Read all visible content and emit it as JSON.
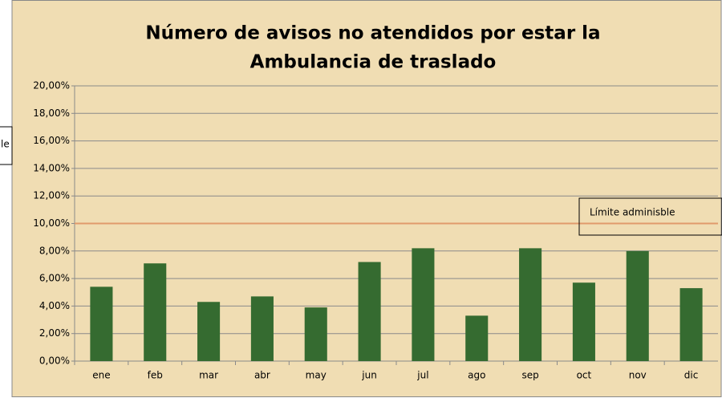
{
  "chart_data": {
    "type": "bar",
    "title": [
      "Número de avisos no atendidos por estar la",
      "Ambulancia de traslado"
    ],
    "categories": [
      "ene",
      "feb",
      "mar",
      "abr",
      "may",
      "jun",
      "jul",
      "ago",
      "sep",
      "oct",
      "nov",
      "dic"
    ],
    "values": [
      5.4,
      7.1,
      4.3,
      4.7,
      3.9,
      7.2,
      8.2,
      3.3,
      8.2,
      5.7,
      8.0,
      5.3
    ],
    "color": "#356b30",
    "ylim": [
      0,
      20
    ],
    "yticks": [
      {
        "value": 0,
        "label": "0,00%"
      },
      {
        "value": 2,
        "label": "2,00%"
      },
      {
        "value": 4,
        "label": "4,00%"
      },
      {
        "value": 6,
        "label": "6,00%"
      },
      {
        "value": 8,
        "label": "8,00%"
      },
      {
        "value": 10,
        "label": "10,00%"
      },
      {
        "value": 12,
        "label": "12,00%"
      },
      {
        "value": 14,
        "label": "14,00%"
      },
      {
        "value": 16,
        "label": "16,00%"
      },
      {
        "value": 18,
        "label": "18,00%"
      },
      {
        "value": 20,
        "label": "20,00%"
      }
    ],
    "grid": true,
    "reference_line": {
      "value": 10,
      "label": "Límite adminisble",
      "color": "#e09a6c"
    },
    "cropped_label": "le"
  }
}
